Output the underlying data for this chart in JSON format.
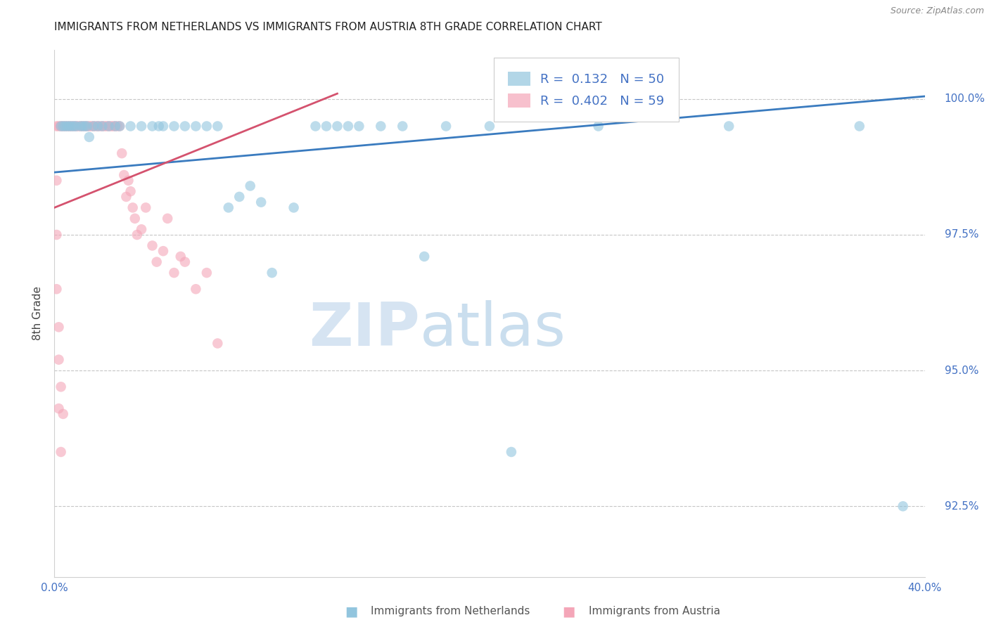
{
  "title": "IMMIGRANTS FROM NETHERLANDS VS IMMIGRANTS FROM AUSTRIA 8TH GRADE CORRELATION CHART",
  "source": "Source: ZipAtlas.com",
  "ylabel": "8th Grade",
  "x_min": 0.0,
  "x_max": 0.4,
  "y_min": 91.2,
  "y_max": 100.9,
  "yticks": [
    92.5,
    95.0,
    97.5,
    100.0
  ],
  "xticks": [
    0.0,
    0.05,
    0.1,
    0.15,
    0.2,
    0.25,
    0.3,
    0.35,
    0.4
  ],
  "xtick_labels": [
    "0.0%",
    "",
    "",
    "",
    "",
    "",
    "",
    "",
    "40.0%"
  ],
  "legend_blue_label": "Immigrants from Netherlands",
  "legend_pink_label": "Immigrants from Austria",
  "legend_blue_r_val": "0.132",
  "legend_blue_n_val": "50",
  "legend_pink_r_val": "0.402",
  "legend_pink_n_val": "59",
  "blue_color": "#92c5de",
  "pink_color": "#f4a6b8",
  "blue_line_color": "#3a7bbf",
  "pink_line_color": "#d4526e",
  "watermark_zip": "ZIP",
  "watermark_atlas": "atlas",
  "blue_scatter_x": [
    0.003,
    0.004,
    0.005,
    0.006,
    0.007,
    0.008,
    0.009,
    0.01,
    0.012,
    0.013,
    0.014,
    0.015,
    0.016,
    0.018,
    0.02,
    0.022,
    0.025,
    0.028,
    0.03,
    0.035,
    0.04,
    0.045,
    0.048,
    0.05,
    0.055,
    0.06,
    0.065,
    0.07,
    0.075,
    0.08,
    0.085,
    0.09,
    0.095,
    0.1,
    0.11,
    0.12,
    0.125,
    0.13,
    0.135,
    0.14,
    0.15,
    0.16,
    0.17,
    0.18,
    0.2,
    0.21,
    0.25,
    0.31,
    0.37,
    0.39
  ],
  "blue_scatter_y": [
    99.5,
    99.5,
    99.5,
    99.5,
    99.5,
    99.5,
    99.5,
    99.5,
    99.5,
    99.5,
    99.5,
    99.5,
    99.3,
    99.5,
    99.5,
    99.5,
    99.5,
    99.5,
    99.5,
    99.5,
    99.5,
    99.5,
    99.5,
    99.5,
    99.5,
    99.5,
    99.5,
    99.5,
    99.5,
    98.0,
    98.2,
    98.4,
    98.1,
    96.8,
    98.0,
    99.5,
    99.5,
    99.5,
    99.5,
    99.5,
    99.5,
    99.5,
    97.1,
    99.5,
    99.5,
    93.5,
    99.5,
    99.5,
    99.5,
    92.5
  ],
  "pink_scatter_x": [
    0.001,
    0.002,
    0.003,
    0.004,
    0.005,
    0.006,
    0.007,
    0.008,
    0.009,
    0.01,
    0.011,
    0.012,
    0.013,
    0.014,
    0.015,
    0.016,
    0.017,
    0.018,
    0.019,
    0.02,
    0.021,
    0.022,
    0.023,
    0.024,
    0.025,
    0.026,
    0.027,
    0.028,
    0.029,
    0.03,
    0.031,
    0.032,
    0.033,
    0.034,
    0.035,
    0.036,
    0.037,
    0.038,
    0.04,
    0.042,
    0.045,
    0.047,
    0.05,
    0.052,
    0.055,
    0.058,
    0.06,
    0.065,
    0.07,
    0.075,
    0.001,
    0.001,
    0.001,
    0.002,
    0.002,
    0.002,
    0.003,
    0.003,
    0.004
  ],
  "pink_scatter_y": [
    99.5,
    99.5,
    99.5,
    99.5,
    99.5,
    99.5,
    99.5,
    99.5,
    99.5,
    99.5,
    99.5,
    99.5,
    99.5,
    99.5,
    99.5,
    99.5,
    99.5,
    99.5,
    99.5,
    99.5,
    99.5,
    99.5,
    99.5,
    99.5,
    99.5,
    99.5,
    99.5,
    99.5,
    99.5,
    99.5,
    99.0,
    98.6,
    98.2,
    98.5,
    98.3,
    98.0,
    97.8,
    97.5,
    97.6,
    98.0,
    97.3,
    97.0,
    97.2,
    97.8,
    96.8,
    97.1,
    97.0,
    96.5,
    96.8,
    95.5,
    98.5,
    97.5,
    96.5,
    95.8,
    95.2,
    94.3,
    94.7,
    93.5,
    94.2
  ],
  "blue_trend_x": [
    0.0,
    0.4
  ],
  "blue_trend_y": [
    98.65,
    100.05
  ],
  "pink_trend_x": [
    0.0,
    0.13
  ],
  "pink_trend_y": [
    98.0,
    100.1
  ]
}
